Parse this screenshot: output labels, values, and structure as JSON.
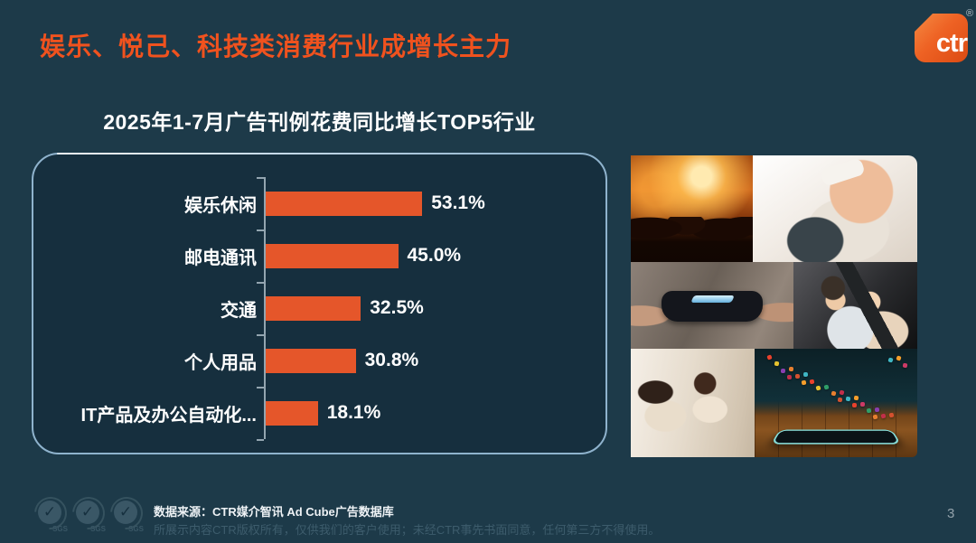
{
  "header": {
    "title": "娱乐、悦己、科技类消费行业成增长主力",
    "logo": {
      "text": "ctr",
      "registered": "®",
      "brand_color": "#ee6224"
    }
  },
  "chart_data": {
    "type": "bar",
    "orientation": "horizontal",
    "title": "2025年1-7月广告刊例花费同比增长TOP5行业",
    "categories": [
      "娱乐休闲",
      "邮电通讯",
      "交通",
      "个人用品",
      "IT产品及办公自动化..."
    ],
    "values": [
      53.1,
      45.0,
      32.5,
      30.8,
      18.1
    ],
    "value_suffix": "%",
    "xlim": [
      0,
      60
    ],
    "grid": false,
    "legend": false,
    "bar_color": "#e5562a",
    "axis_color": "#93a5b0",
    "label_color": "#ffffff"
  },
  "collage": {
    "images": [
      {
        "name": "concert-crowd-photo"
      },
      {
        "name": "spa-facial-photo"
      },
      {
        "name": "game-controller-photo"
      },
      {
        "name": "kids-carseat-photo"
      },
      {
        "name": "women-dining-photo"
      },
      {
        "name": "tablet-apps-photo"
      }
    ],
    "app_icon_colors": [
      "#e8412c",
      "#f59e2b",
      "#3fb6c4",
      "#d4512f",
      "#c22f4a",
      "#e87f2f",
      "#8a3fb0",
      "#2f9e68",
      "#e5c22f",
      "#cc3a66"
    ]
  },
  "footer": {
    "source": "数据来源：CTR媒介智讯 Ad Cube广告数据库",
    "disclaimer": "所展示内容CTR版权所有，仅供我们的客户使用；未经CTR事先书面同意，任何第三方不得使用。",
    "certifications": [
      "SGS",
      "SGS",
      "SGS"
    ],
    "page_number": "3"
  }
}
